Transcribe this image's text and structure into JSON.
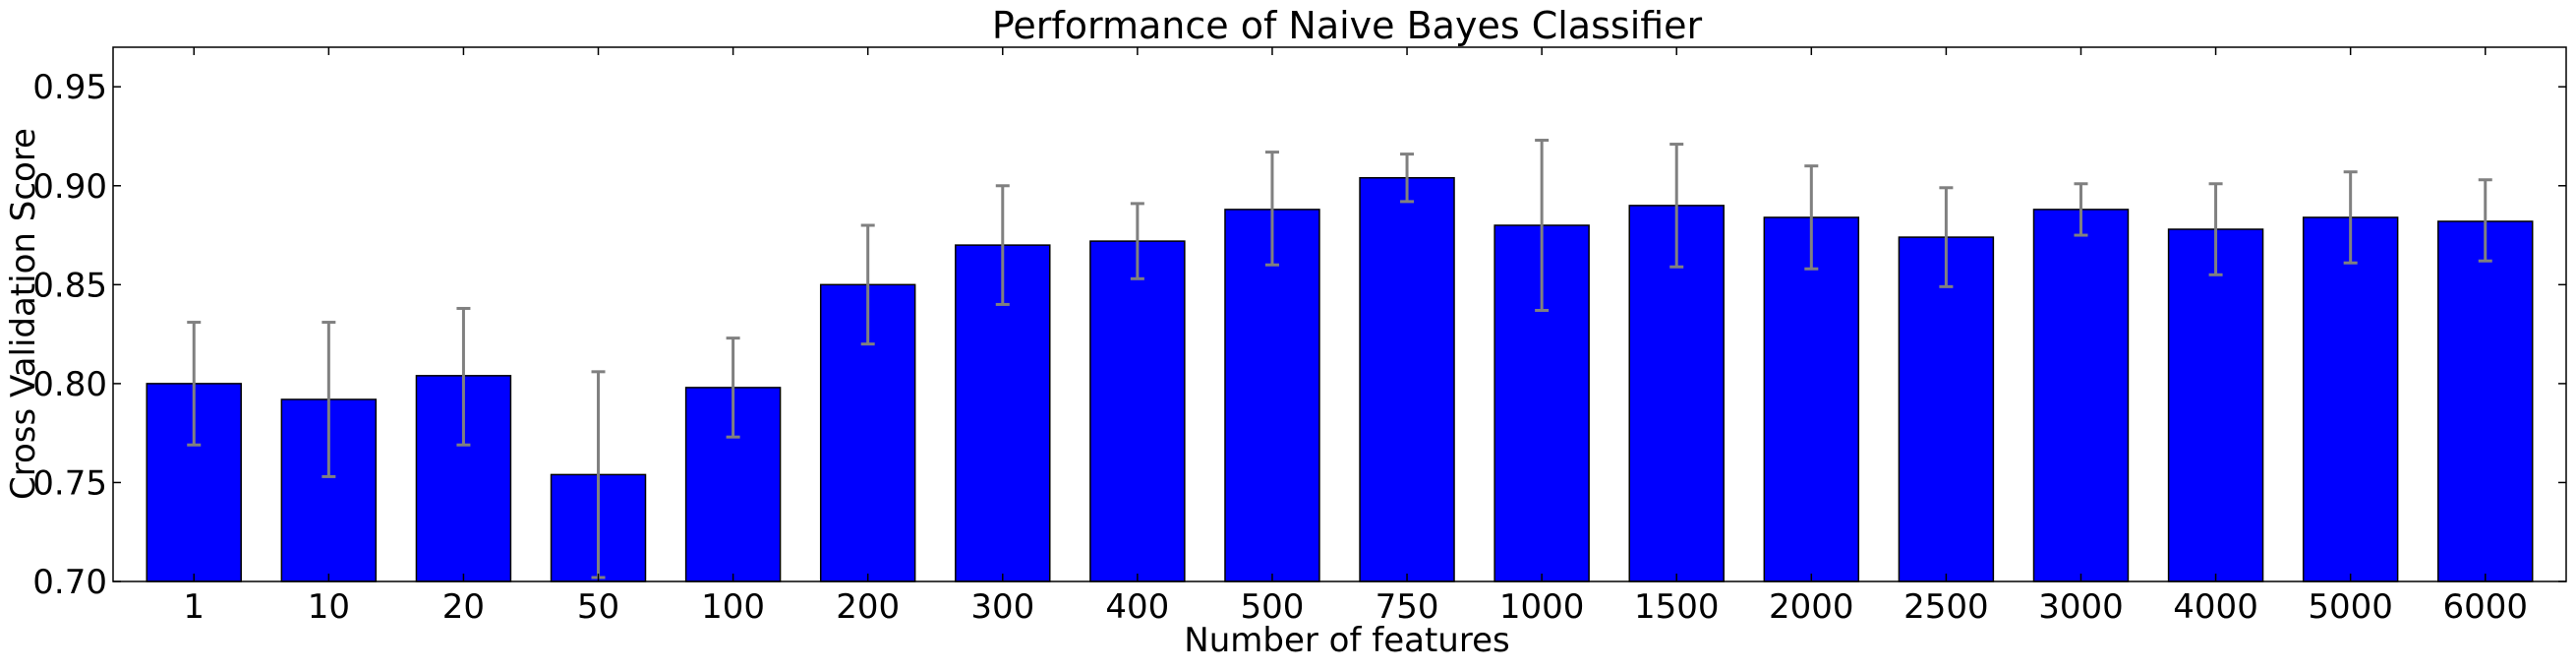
{
  "chart_data": {
    "type": "bar",
    "title": "Performance of Naive Bayes Classifier",
    "xlabel": "Number of features",
    "ylabel": "Cross Validation Score",
    "ylim": [
      0.7,
      0.97
    ],
    "yticks": [
      0.7,
      0.75,
      0.8,
      0.85,
      0.9,
      0.95
    ],
    "ytick_labels": [
      "0.70",
      "0.75",
      "0.80",
      "0.85",
      "0.90",
      "0.95"
    ],
    "grid": false,
    "categories": [
      "1",
      "10",
      "20",
      "50",
      "100",
      "200",
      "300",
      "400",
      "500",
      "750",
      "1000",
      "1500",
      "2000",
      "2500",
      "3000",
      "4000",
      "5000",
      "6000"
    ],
    "values": [
      0.8,
      0.792,
      0.804,
      0.754,
      0.798,
      0.85,
      0.87,
      0.872,
      0.888,
      0.904,
      0.88,
      0.89,
      0.884,
      0.874,
      0.888,
      0.878,
      0.884,
      0.882
    ],
    "error_low": [
      0.769,
      0.753,
      0.769,
      0.702,
      0.773,
      0.82,
      0.84,
      0.853,
      0.86,
      0.892,
      0.837,
      0.859,
      0.858,
      0.849,
      0.875,
      0.855,
      0.861,
      0.862
    ],
    "error_high": [
      0.831,
      0.831,
      0.838,
      0.806,
      0.823,
      0.88,
      0.9,
      0.891,
      0.917,
      0.916,
      0.923,
      0.921,
      0.91,
      0.899,
      0.901,
      0.901,
      0.907,
      0.903
    ],
    "colors": {
      "bar_fill": "#0000ff",
      "bar_edge": "#000000",
      "error_bar": "#808080"
    }
  }
}
